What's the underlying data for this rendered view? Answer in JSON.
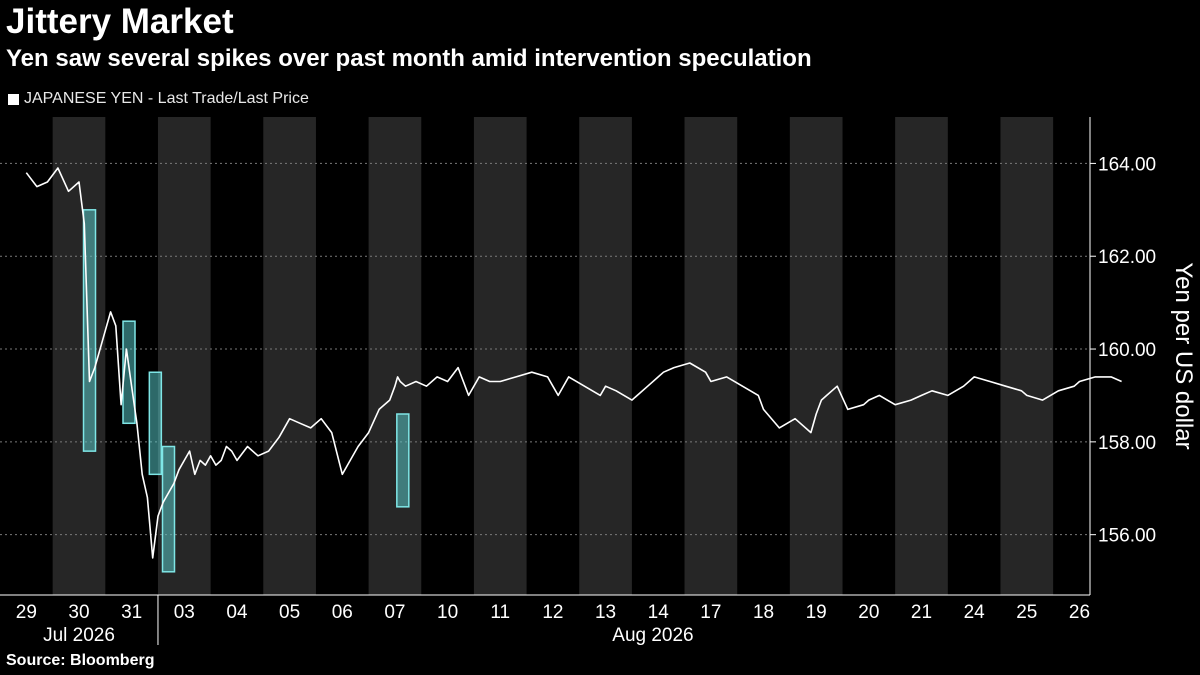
{
  "chart_data": {
    "type": "line",
    "title": "Jittery Market",
    "subtitle": "Yen saw several spikes over past month amid intervention speculation",
    "ylabel": "Yen per US dollar",
    "ylim": [
      154.7,
      165.0
    ],
    "yticks": [
      156,
      158,
      160,
      162,
      164
    ],
    "ytick_labels": [
      "156.00",
      "158.00",
      "160.00",
      "162.00",
      "164.00"
    ],
    "grid": "horizontal dashed",
    "legend_position": "top-left",
    "shaded_alternate_days": true,
    "categories": [
      "29",
      "30",
      "31",
      "03",
      "04",
      "05",
      "06",
      "07",
      "10",
      "11",
      "12",
      "13",
      "14",
      "17",
      "18",
      "19",
      "20",
      "21",
      "24",
      "25",
      "26"
    ],
    "month_labels": [
      {
        "label": "Jul 2026",
        "day_index": 1
      },
      {
        "label": "Aug 2026",
        "day_index": 11.9
      }
    ],
    "series": [
      {
        "name": "JAPANESE YEN - Last Trade/Last Price",
        "color": "#ffffff",
        "x": [
          0,
          0.2,
          0.4,
          0.6,
          0.8,
          1.0,
          1.1,
          1.2,
          1.3,
          1.45,
          1.6,
          1.7,
          1.8,
          1.9,
          2.0,
          2.1,
          2.2,
          2.3,
          2.4,
          2.5,
          2.6,
          2.7,
          2.8,
          2.9,
          3.0,
          3.1,
          3.2,
          3.3,
          3.4,
          3.5,
          3.6,
          3.7,
          3.8,
          3.9,
          4.0,
          4.2,
          4.4,
          4.6,
          4.8,
          5.0,
          5.2,
          5.4,
          5.6,
          5.8,
          6.0,
          6.1,
          6.3,
          6.5,
          6.7,
          6.9,
          7.0,
          7.05,
          7.1,
          7.2,
          7.4,
          7.6,
          7.8,
          8.0,
          8.2,
          8.4,
          8.6,
          8.8,
          9.0,
          9.3,
          9.6,
          9.9,
          10.0,
          10.1,
          10.3,
          10.6,
          10.9,
          11.0,
          11.2,
          11.5,
          11.8,
          12.0,
          12.1,
          12.3,
          12.6,
          12.9,
          13.0,
          13.3,
          13.6,
          13.9,
          14.0,
          14.3,
          14.6,
          14.9,
          15.0,
          15.1,
          15.2,
          15.4,
          15.6,
          15.9,
          16.0,
          16.2,
          16.5,
          16.8,
          17.0,
          17.2,
          17.5,
          17.8,
          18.0,
          18.3,
          18.6,
          18.9,
          19.0,
          19.3,
          19.6,
          19.9,
          20.0,
          20.3,
          20.6,
          20.8
        ],
        "values": [
          163.8,
          163.5,
          163.6,
          163.9,
          163.4,
          163.6,
          162.7,
          159.3,
          159.6,
          160.2,
          160.8,
          160.5,
          158.8,
          160.0,
          159.2,
          158.4,
          157.3,
          156.8,
          155.5,
          156.4,
          156.7,
          156.9,
          157.1,
          157.4,
          157.6,
          157.8,
          157.3,
          157.6,
          157.5,
          157.7,
          157.5,
          157.6,
          157.9,
          157.8,
          157.6,
          157.9,
          157.7,
          157.8,
          158.1,
          158.5,
          158.4,
          158.3,
          158.5,
          158.2,
          157.3,
          157.5,
          157.9,
          158.2,
          158.7,
          158.9,
          159.2,
          159.4,
          159.3,
          159.2,
          159.3,
          159.2,
          159.4,
          159.3,
          159.6,
          159.0,
          159.4,
          159.3,
          159.3,
          159.4,
          159.5,
          159.4,
          159.2,
          159.0,
          159.4,
          159.2,
          159.0,
          159.2,
          159.1,
          158.9,
          159.2,
          159.4,
          159.5,
          159.6,
          159.7,
          159.5,
          159.3,
          159.4,
          159.2,
          159.0,
          158.7,
          158.3,
          158.5,
          158.2,
          158.6,
          158.9,
          159.0,
          159.2,
          158.7,
          158.8,
          158.9,
          159.0,
          158.8,
          158.9,
          159.0,
          159.1,
          159.0,
          159.2,
          159.4,
          159.3,
          159.2,
          159.1,
          159.0,
          158.9,
          159.1,
          159.2,
          159.3,
          159.4,
          159.4,
          159.3
        ]
      }
    ],
    "highlight_boxes": [
      {
        "day": 1.2,
        "y_low": 157.8,
        "y_high": 163.0
      },
      {
        "day": 1.95,
        "y_low": 158.4,
        "y_high": 160.6
      },
      {
        "day": 2.45,
        "y_low": 157.3,
        "y_high": 159.5
      },
      {
        "day": 2.7,
        "y_low": 155.2,
        "y_high": 157.9
      },
      {
        "day": 7.15,
        "y_low": 156.6,
        "y_high": 158.6
      }
    ]
  },
  "source": "Source: Bloomberg"
}
